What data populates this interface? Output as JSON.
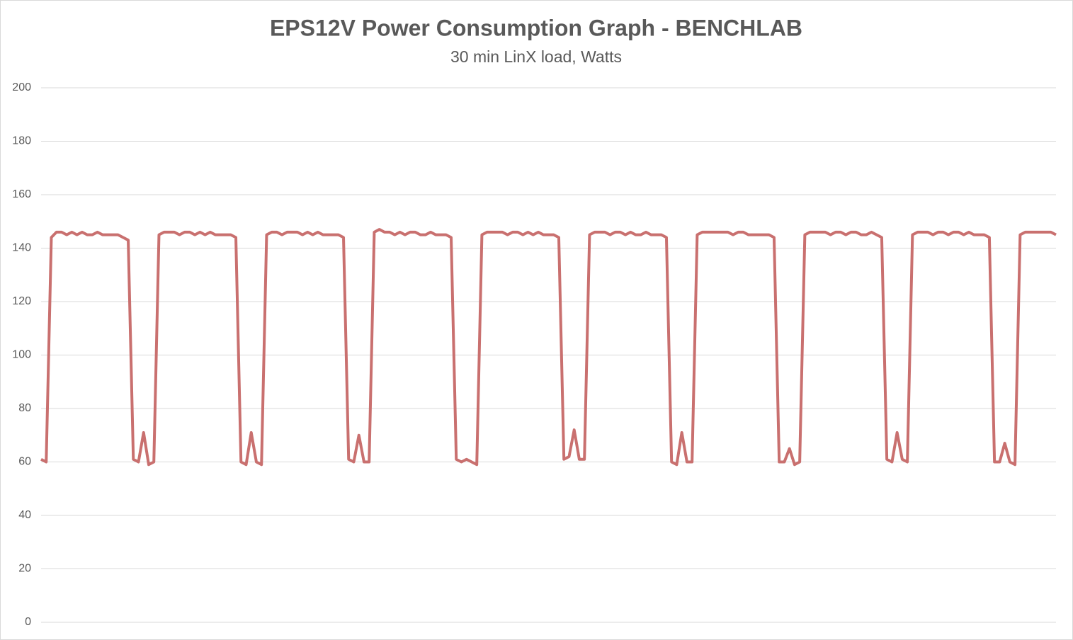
{
  "chart_data": {
    "type": "line",
    "title": "EPS12V Power Consumption Graph - BENCHLAB",
    "subtitle": "30 min LinX load, Watts",
    "ylim": [
      0,
      200
    ],
    "yticks": [
      0,
      20,
      40,
      60,
      80,
      100,
      120,
      140,
      160,
      180,
      200
    ],
    "grid": true,
    "color": "#c9706f",
    "values": [
      61,
      60,
      144,
      146,
      146,
      145,
      146,
      145,
      146,
      145,
      145,
      146,
      145,
      145,
      145,
      145,
      144,
      143,
      61,
      60,
      71,
      59,
      60,
      145,
      146,
      146,
      146,
      145,
      146,
      146,
      145,
      146,
      145,
      146,
      145,
      145,
      145,
      145,
      144,
      60,
      59,
      71,
      60,
      59,
      145,
      146,
      146,
      145,
      146,
      146,
      146,
      145,
      146,
      145,
      146,
      145,
      145,
      145,
      145,
      144,
      61,
      60,
      70,
      60,
      60,
      146,
      147,
      146,
      146,
      145,
      146,
      145,
      146,
      146,
      145,
      145,
      146,
      145,
      145,
      145,
      144,
      61,
      60,
      61,
      60,
      59,
      145,
      146,
      146,
      146,
      146,
      145,
      146,
      146,
      145,
      146,
      145,
      146,
      145,
      145,
      145,
      144,
      61,
      62,
      72,
      61,
      61,
      145,
      146,
      146,
      146,
      145,
      146,
      146,
      145,
      146,
      145,
      145,
      146,
      145,
      145,
      145,
      144,
      60,
      59,
      71,
      60,
      60,
      145,
      146,
      146,
      146,
      146,
      146,
      146,
      145,
      146,
      146,
      145,
      145,
      145,
      145,
      145,
      144,
      60,
      60,
      65,
      59,
      60,
      145,
      146,
      146,
      146,
      146,
      145,
      146,
      146,
      145,
      146,
      146,
      145,
      145,
      146,
      145,
      144,
      61,
      60,
      71,
      61,
      60,
      145,
      146,
      146,
      146,
      145,
      146,
      146,
      145,
      146,
      146,
      145,
      146,
      145,
      145,
      145,
      144,
      60,
      60,
      67,
      60,
      59,
      145,
      146,
      146,
      146,
      146,
      146,
      146,
      145
    ]
  }
}
